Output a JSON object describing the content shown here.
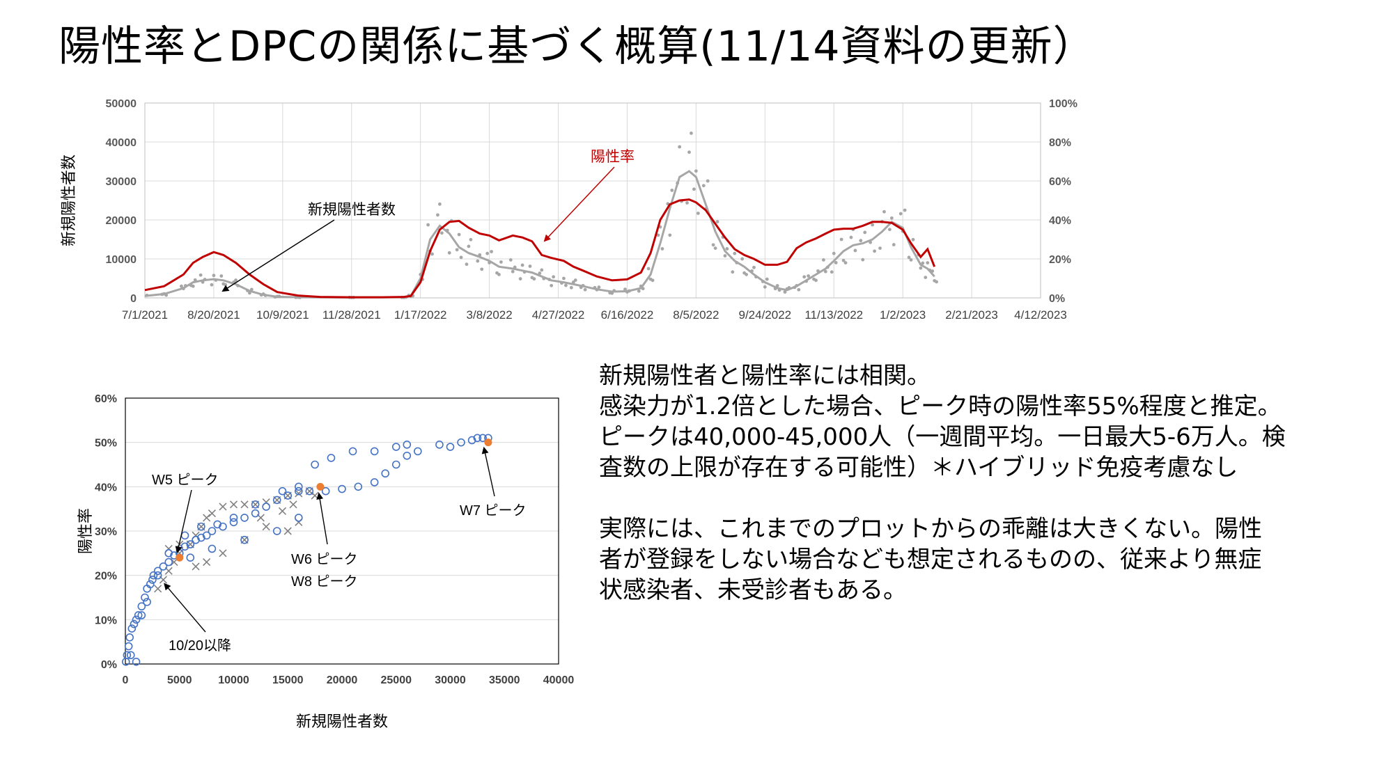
{
  "title": "陽性率とDPCの関係に基づく概算(11/14資料の更新）",
  "notes": [
    "新規陽性者と陽性率には相関。",
    "感染力が1.2倍とした場合、ピーク時の陽性率55%程度と推定。",
    "ピークは40,000-45,000人（一週間平均。一日最大5-6万人。検",
    "査数の上限が存在する可能性）＊ハイブリッド免疫考慮なし",
    "",
    "実際には、これまでのプロットからの乖離は大きくない。陽性",
    "者が登録をしない場合なども想定されるものの、従来より無症",
    "状感染者、未受診者もある。"
  ],
  "chart_data": [
    {
      "type": "line",
      "ylabel": "新規陽性者数",
      "y2label": "陽性率",
      "ylim": [
        0,
        50000
      ],
      "y2lim": [
        0,
        1
      ],
      "yticks": [
        "0",
        "10000",
        "20000",
        "30000",
        "40000",
        "50000"
      ],
      "y2ticks": [
        "0%",
        "20%",
        "40%",
        "60%",
        "80%",
        "100%"
      ],
      "xticks": [
        "7/1/2021",
        "8/20/2021",
        "10/9/2021",
        "11/28/2021",
        "1/17/2022",
        "3/8/2022",
        "4/27/2022",
        "6/16/2022",
        "8/5/2022",
        "9/24/2022",
        "11/13/2022",
        "1/2/2023",
        "2/21/2023",
        "4/12/2023"
      ],
      "grid": true,
      "annotations": {
        "cases": "新規陽性者数",
        "rate": "陽性率"
      },
      "colors": {
        "rate": "#c00000",
        "cases": "#a6a6a6"
      },
      "series": [
        {
          "name": "陽性率",
          "axis": "right",
          "x": [
            "7/1/2021",
            "7/15/2021",
            "7/29/2021",
            "8/5/2021",
            "8/12/2021",
            "8/20/2021",
            "8/27/2021",
            "9/5/2021",
            "9/15/2021",
            "9/25/2021",
            "10/5/2021",
            "10/20/2021",
            "11/5/2021",
            "11/28/2021",
            "12/20/2021",
            "1/5/2022",
            "1/10/2022",
            "1/17/2022",
            "1/24/2022",
            "1/31/2022",
            "2/7/2022",
            "2/14/2022",
            "2/21/2022",
            "3/1/2022",
            "3/8/2022",
            "3/15/2022",
            "3/25/2022",
            "4/1/2022",
            "4/8/2022",
            "4/15/2022",
            "4/22/2022",
            "5/1/2022",
            "5/8/2022",
            "5/15/2022",
            "5/25/2022",
            "6/5/2022",
            "6/16/2022",
            "6/26/2022",
            "7/3/2022",
            "7/10/2022",
            "7/17/2022",
            "7/24/2022",
            "7/31/2022",
            "8/5/2022",
            "8/12/2022",
            "8/19/2022",
            "8/26/2022",
            "9/2/2022",
            "9/9/2022",
            "9/16/2022",
            "9/24/2022",
            "10/3/2022",
            "10/10/2022",
            "10/17/2022",
            "10/24/2022",
            "10/31/2022",
            "11/7/2022",
            "11/13/2022",
            "11/20/2022",
            "11/27/2022",
            "12/4/2022",
            "12/11/2022",
            "12/18/2022",
            "12/25/2022",
            "1/2/2023",
            "1/8/2023",
            "1/15/2023",
            "1/20/2023",
            "1/25/2023"
          ],
          "values": [
            0.04,
            0.06,
            0.12,
            0.18,
            0.21,
            0.235,
            0.22,
            0.18,
            0.12,
            0.07,
            0.03,
            0.012,
            0.005,
            0.003,
            0.003,
            0.005,
            0.01,
            0.08,
            0.24,
            0.35,
            0.39,
            0.395,
            0.36,
            0.33,
            0.32,
            0.295,
            0.32,
            0.31,
            0.29,
            0.22,
            0.205,
            0.19,
            0.16,
            0.14,
            0.11,
            0.09,
            0.095,
            0.13,
            0.23,
            0.4,
            0.48,
            0.5,
            0.505,
            0.49,
            0.45,
            0.38,
            0.31,
            0.25,
            0.22,
            0.2,
            0.17,
            0.17,
            0.185,
            0.255,
            0.285,
            0.305,
            0.33,
            0.35,
            0.355,
            0.355,
            0.37,
            0.39,
            0.39,
            0.385,
            0.35,
            0.28,
            0.21,
            0.25,
            0.16
          ]
        },
        {
          "name": "新規陽性者数",
          "axis": "left",
          "x": [
            "7/1/2021",
            "7/15/2021",
            "7/29/2021",
            "8/5/2021",
            "8/12/2021",
            "8/20/2021",
            "8/27/2021",
            "9/5/2021",
            "9/15/2021",
            "9/25/2021",
            "10/5/2021",
            "10/20/2021",
            "11/28/2021",
            "1/5/2022",
            "1/10/2022",
            "1/17/2022",
            "1/24/2022",
            "1/31/2022",
            "2/7/2022",
            "2/14/2022",
            "2/21/2022",
            "3/1/2022",
            "3/8/2022",
            "3/15/2022",
            "3/25/2022",
            "4/1/2022",
            "4/8/2022",
            "4/15/2022",
            "4/22/2022",
            "5/1/2022",
            "5/8/2022",
            "5/15/2022",
            "5/25/2022",
            "6/5/2022",
            "6/16/2022",
            "6/26/2022",
            "7/3/2022",
            "7/10/2022",
            "7/17/2022",
            "7/24/2022",
            "7/31/2022",
            "8/5/2022",
            "8/12/2022",
            "8/19/2022",
            "8/26/2022",
            "9/2/2022",
            "9/9/2022",
            "9/16/2022",
            "9/24/2022",
            "10/3/2022",
            "10/10/2022",
            "10/17/2022",
            "10/24/2022",
            "10/31/2022",
            "11/7/2022",
            "11/13/2022",
            "11/20/2022",
            "11/27/2022",
            "12/4/2022",
            "12/11/2022",
            "12/18/2022",
            "12/25/2022",
            "1/2/2023",
            "1/8/2023",
            "1/15/2023",
            "1/20/2023",
            "1/25/2023"
          ],
          "values": [
            500,
            1000,
            2500,
            4000,
            4500,
            4800,
            4500,
            3500,
            1800,
            800,
            300,
            150,
            100,
            150,
            500,
            5000,
            15000,
            18500,
            16500,
            13000,
            11500,
            10500,
            9500,
            8000,
            7500,
            7000,
            6500,
            5500,
            4500,
            4000,
            3500,
            3000,
            2200,
            1600,
            1700,
            2500,
            6000,
            14000,
            23000,
            31000,
            32500,
            31000,
            24000,
            17000,
            12000,
            9500,
            8000,
            6000,
            4000,
            2500,
            2000,
            3000,
            4500,
            6000,
            7500,
            9500,
            12000,
            13500,
            14000,
            15000,
            17000,
            19500,
            18000,
            13000,
            8500,
            7500,
            5500
          ]
        }
      ]
    },
    {
      "type": "scatter",
      "xlabel": "新規陽性者数",
      "ylabel": "陽性率",
      "xlim": [
        0,
        40000
      ],
      "ylim": [
        0,
        0.6
      ],
      "xticks": [
        "0",
        "5000",
        "10000",
        "15000",
        "20000",
        "25000",
        "30000",
        "35000",
        "40000"
      ],
      "yticks": [
        "0%",
        "10%",
        "20%",
        "30%",
        "40%",
        "50%",
        "60%"
      ],
      "grid": true,
      "colors": {
        "circles": "#4472c4",
        "crosses": "#808080",
        "peaks": "#ed7d31"
      },
      "annotations": [
        {
          "label": "W5 ピーク",
          "x": 5000,
          "y": 0.24
        },
        {
          "label": "W6 ピーク",
          "x": 18000,
          "y": 0.4
        },
        {
          "label": "W8 ピーク",
          "x": 18000,
          "y": 0.4
        },
        {
          "label": "W7 ピーク",
          "x": 33500,
          "y": 0.5
        },
        {
          "label": "10/20以降",
          "x": 3500,
          "y": 0.19
        }
      ],
      "series": [
        {
          "name": "circles",
          "marker": "circle",
          "points": [
            [
              50,
              0.005
            ],
            [
              150,
              0.02
            ],
            [
              300,
              0.04
            ],
            [
              400,
              0.06
            ],
            [
              600,
              0.08
            ],
            [
              800,
              0.09
            ],
            [
              1000,
              0.1
            ],
            [
              1200,
              0.11
            ],
            [
              1500,
              0.13
            ],
            [
              1800,
              0.15
            ],
            [
              2000,
              0.17
            ],
            [
              2300,
              0.18
            ],
            [
              2600,
              0.2
            ],
            [
              3000,
              0.21
            ],
            [
              3500,
              0.22
            ],
            [
              4000,
              0.23
            ],
            [
              4500,
              0.245
            ],
            [
              5000,
              0.25
            ],
            [
              5500,
              0.265
            ],
            [
              6000,
              0.27
            ],
            [
              6500,
              0.28
            ],
            [
              7000,
              0.285
            ],
            [
              7500,
              0.29
            ],
            [
              8000,
              0.3
            ],
            [
              9000,
              0.31
            ],
            [
              10000,
              0.32
            ],
            [
              11000,
              0.33
            ],
            [
              12000,
              0.34
            ],
            [
              13000,
              0.355
            ],
            [
              14000,
              0.37
            ],
            [
              15000,
              0.38
            ],
            [
              16000,
              0.39
            ],
            [
              17000,
              0.39
            ],
            [
              18500,
              0.39
            ],
            [
              20000,
              0.395
            ],
            [
              21500,
              0.4
            ],
            [
              23000,
              0.41
            ],
            [
              24000,
              0.43
            ],
            [
              25000,
              0.45
            ],
            [
              26000,
              0.47
            ],
            [
              27000,
              0.48
            ],
            [
              29000,
              0.495
            ],
            [
              30000,
              0.49
            ],
            [
              31000,
              0.5
            ],
            [
              32000,
              0.505
            ],
            [
              32500,
              0.51
            ],
            [
              33000,
              0.51
            ],
            [
              33500,
              0.51
            ],
            [
              2000,
              0.14
            ],
            [
              3000,
              0.2
            ],
            [
              4000,
              0.25
            ],
            [
              5500,
              0.29
            ],
            [
              7000,
              0.31
            ],
            [
              8500,
              0.315
            ],
            [
              10000,
              0.33
            ],
            [
              12000,
              0.36
            ],
            [
              14500,
              0.39
            ],
            [
              16000,
              0.4
            ],
            [
              17500,
              0.45
            ],
            [
              19000,
              0.465
            ],
            [
              21000,
              0.48
            ],
            [
              23000,
              0.48
            ],
            [
              25000,
              0.49
            ],
            [
              26000,
              0.495
            ],
            [
              1000,
              0.005
            ],
            [
              500,
              0.02
            ],
            [
              1500,
              0.11
            ],
            [
              2500,
              0.19
            ],
            [
              6000,
              0.24
            ],
            [
              8000,
              0.26
            ],
            [
              11000,
              0.28
            ],
            [
              14000,
              0.3
            ],
            [
              16000,
              0.33
            ]
          ]
        },
        {
          "name": "crosses",
          "marker": "x",
          "points": [
            [
              3000,
              0.17
            ],
            [
              3500,
              0.19
            ],
            [
              4000,
              0.21
            ],
            [
              4500,
              0.23
            ],
            [
              5000,
              0.25
            ],
            [
              6000,
              0.27
            ],
            [
              6500,
              0.29
            ],
            [
              7000,
              0.31
            ],
            [
              7500,
              0.33
            ],
            [
              8000,
              0.34
            ],
            [
              9000,
              0.355
            ],
            [
              10000,
              0.36
            ],
            [
              11000,
              0.36
            ],
            [
              12000,
              0.36
            ],
            [
              13000,
              0.365
            ],
            [
              14000,
              0.37
            ],
            [
              15000,
              0.38
            ],
            [
              16000,
              0.385
            ],
            [
              17000,
              0.39
            ],
            [
              12500,
              0.33
            ],
            [
              14500,
              0.345
            ],
            [
              16000,
              0.32
            ],
            [
              15000,
              0.3
            ],
            [
              13000,
              0.31
            ],
            [
              11000,
              0.28
            ],
            [
              9000,
              0.25
            ],
            [
              7500,
              0.23
            ],
            [
              6500,
              0.22
            ],
            [
              15500,
              0.36
            ],
            [
              17500,
              0.38
            ],
            [
              4000,
              0.26
            ],
            [
              5000,
              0.27
            ]
          ]
        },
        {
          "name": "peaks",
          "marker": "dot",
          "points": [
            [
              5000,
              0.24
            ],
            [
              18000,
              0.4
            ],
            [
              33500,
              0.5
            ]
          ]
        }
      ]
    }
  ]
}
